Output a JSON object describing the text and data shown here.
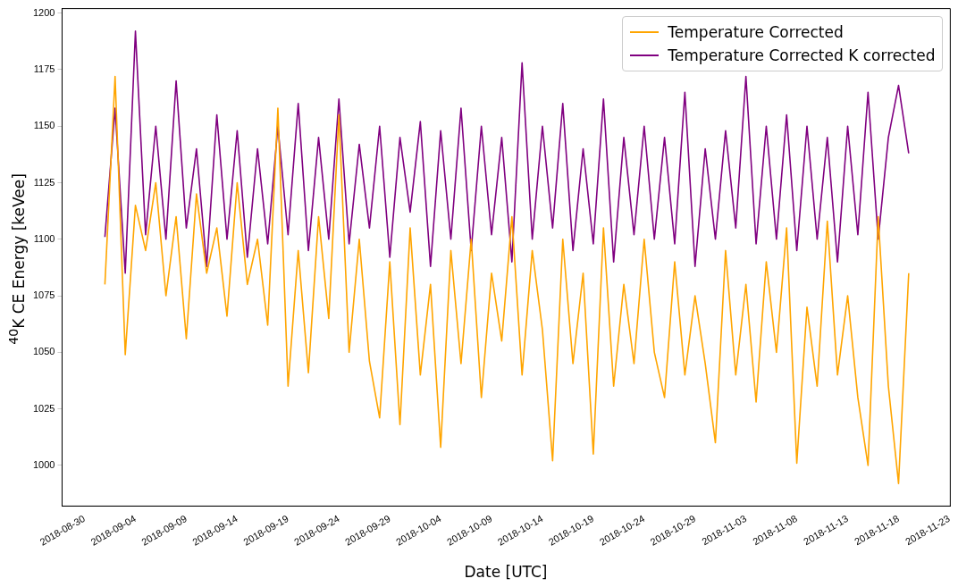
{
  "chart_data": {
    "type": "line",
    "xlabel": "Date [UTC]",
    "ylabel": "$^{40}$K CE Energy [keVee]",
    "x": [
      "2018-09-01",
      "2018-09-02",
      "2018-09-03",
      "2018-09-04",
      "2018-09-05",
      "2018-09-06",
      "2018-09-07",
      "2018-09-08",
      "2018-09-09",
      "2018-09-10",
      "2018-09-11",
      "2018-09-12",
      "2018-09-13",
      "2018-09-14",
      "2018-09-15",
      "2018-09-16",
      "2018-09-17",
      "2018-09-18",
      "2018-09-19",
      "2018-09-20",
      "2018-09-21",
      "2018-09-22",
      "2018-09-23",
      "2018-09-24",
      "2018-09-25",
      "2018-09-26",
      "2018-09-27",
      "2018-09-28",
      "2018-09-29",
      "2018-09-30",
      "2018-10-01",
      "2018-10-02",
      "2018-10-03",
      "2018-10-04",
      "2018-10-05",
      "2018-10-06",
      "2018-10-07",
      "2018-10-08",
      "2018-10-09",
      "2018-10-10",
      "2018-10-11",
      "2018-10-12",
      "2018-10-13",
      "2018-10-14",
      "2018-10-15",
      "2018-10-16",
      "2018-10-17",
      "2018-10-18",
      "2018-10-19",
      "2018-10-20",
      "2018-10-21",
      "2018-10-22",
      "2018-10-23",
      "2018-10-24",
      "2018-10-25",
      "2018-10-26",
      "2018-10-27",
      "2018-10-28",
      "2018-10-29",
      "2018-10-30",
      "2018-10-31",
      "2018-11-01",
      "2018-11-02",
      "2018-11-03",
      "2018-11-04",
      "2018-11-05",
      "2018-11-06",
      "2018-11-07",
      "2018-11-08",
      "2018-11-09",
      "2018-11-10",
      "2018-11-11",
      "2018-11-12",
      "2018-11-13",
      "2018-11-14",
      "2018-11-15",
      "2018-11-16",
      "2018-11-17",
      "2018-11-18",
      "2018-11-19"
    ],
    "series": [
      {
        "name": "Temperature Corrected",
        "color": "#ffa500",
        "values": [
          1080,
          1172,
          1049,
          1115,
          1095,
          1125,
          1075,
          1110,
          1056,
          1120,
          1085,
          1105,
          1066,
          1125,
          1080,
          1100,
          1062,
          1158,
          1035,
          1095,
          1041,
          1110,
          1065,
          1155,
          1050,
          1100,
          1046,
          1021,
          1090,
          1018,
          1105,
          1040,
          1080,
          1008,
          1095,
          1045,
          1100,
          1030,
          1085,
          1055,
          1110,
          1040,
          1095,
          1060,
          1002,
          1100,
          1045,
          1085,
          1005,
          1105,
          1035,
          1080,
          1045,
          1100,
          1050,
          1030,
          1090,
          1040,
          1075,
          1045,
          1010,
          1095,
          1040,
          1080,
          1028,
          1090,
          1050,
          1105,
          1001,
          1070,
          1035,
          1108,
          1040,
          1075,
          1030,
          1000,
          1110,
          1035,
          992,
          1085
        ]
      },
      {
        "name": "Temperature Corrected K corrected",
        "color": "#800080",
        "values": [
          1101,
          1158,
          1085,
          1192,
          1102,
          1150,
          1100,
          1170,
          1105,
          1140,
          1088,
          1155,
          1100,
          1148,
          1092,
          1140,
          1098,
          1150,
          1102,
          1160,
          1095,
          1145,
          1100,
          1162,
          1098,
          1142,
          1105,
          1150,
          1092,
          1145,
          1112,
          1152,
          1088,
          1148,
          1100,
          1158,
          1095,
          1150,
          1102,
          1145,
          1090,
          1178,
          1100,
          1150,
          1105,
          1160,
          1095,
          1140,
          1098,
          1162,
          1090,
          1145,
          1102,
          1150,
          1100,
          1145,
          1098,
          1165,
          1088,
          1140,
          1100,
          1148,
          1105,
          1172,
          1098,
          1150,
          1100,
          1155,
          1095,
          1150,
          1100,
          1145,
          1090,
          1150,
          1102,
          1165,
          1100,
          1145,
          1168,
          1138
        ]
      }
    ],
    "xlim": [
      "2018-08-27T19:00",
      "2018-11-23T02:00"
    ],
    "xticks": [
      "2018-08-30",
      "2018-09-04",
      "2018-09-09",
      "2018-09-14",
      "2018-09-19",
      "2018-09-24",
      "2018-09-29",
      "2018-10-04",
      "2018-10-09",
      "2018-10-14",
      "2018-10-19",
      "2018-10-24",
      "2018-10-29",
      "2018-11-03",
      "2018-11-08",
      "2018-11-13",
      "2018-11-18",
      "2018-11-23"
    ],
    "ylim": [
      982,
      1202
    ],
    "yticks": [
      1000,
      1025,
      1050,
      1075,
      1100,
      1125,
      1150,
      1175,
      1200
    ],
    "legend": "top right",
    "grid": false,
    "marker": "none",
    "line_style": "solid"
  }
}
